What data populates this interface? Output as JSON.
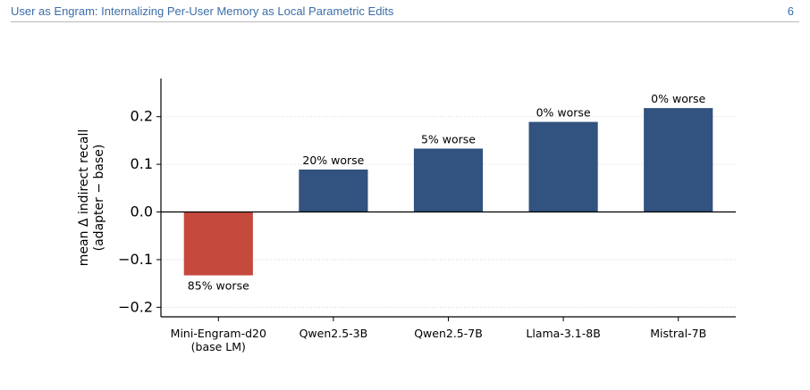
{
  "header": {
    "title": "User as Engram: Internalizing Per-User Memory as Local Parametric Edits",
    "page_number": "6"
  },
  "chart_data": {
    "type": "bar",
    "title": "",
    "xlabel": "",
    "ylabel": [
      "mean Δ indirect recall",
      "(adapter − base)"
    ],
    "categories": [
      [
        "Mini-Engram-d20",
        "(base LM)"
      ],
      [
        "Qwen2.5-3B"
      ],
      [
        "Qwen2.5-7B"
      ],
      [
        "Llama-3.1-8B"
      ],
      [
        "Mistral-7B"
      ]
    ],
    "values": [
      -0.133,
      0.089,
      0.133,
      0.189,
      0.218
    ],
    "bar_labels": [
      "85% worse",
      "20% worse",
      "5% worse",
      "0% worse",
      "0% worse"
    ],
    "colors": [
      "#c5493d",
      "#32527f",
      "#32527f",
      "#32527f",
      "#32527f"
    ],
    "ylim": [
      -0.22,
      0.28
    ],
    "yticks": [
      -0.2,
      -0.1,
      0.0,
      0.1,
      0.2
    ],
    "ytick_labels": [
      "−0.2",
      "−0.1",
      "0.0",
      "0.1",
      "0.2"
    ],
    "grid": "horizontal dotted",
    "zero_line": true
  }
}
